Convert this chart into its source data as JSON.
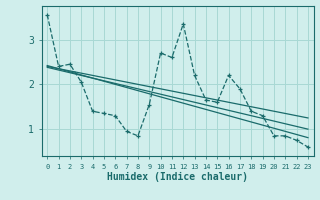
{
  "bg_color": "#d0eeec",
  "line_color": "#1a6b6b",
  "grid_color": "#a8d8d4",
  "xlabel": "Humidex (Indice chaleur)",
  "yticks": [
    1,
    2,
    3
  ],
  "xlim": [
    -0.5,
    23.5
  ],
  "ylim": [
    0.4,
    3.75
  ],
  "x": [
    0,
    1,
    2,
    3,
    4,
    5,
    6,
    7,
    8,
    9,
    10,
    11,
    12,
    13,
    14,
    15,
    16,
    17,
    18,
    19,
    20,
    21,
    22,
    23
  ],
  "y_main": [
    3.55,
    2.4,
    2.45,
    2.05,
    1.4,
    1.35,
    1.3,
    0.95,
    0.85,
    1.55,
    2.7,
    2.6,
    3.35,
    2.2,
    1.65,
    1.6,
    2.2,
    1.9,
    1.4,
    1.3,
    0.85,
    0.85,
    0.75,
    0.6
  ],
  "y_trend1": [
    2.4,
    2.35,
    2.3,
    2.25,
    2.2,
    2.15,
    2.1,
    2.05,
    2.0,
    1.95,
    1.9,
    1.85,
    1.8,
    1.75,
    1.7,
    1.65,
    1.6,
    1.55,
    1.5,
    1.45,
    1.4,
    1.35,
    1.3,
    1.25
  ],
  "y_trend2": [
    2.38,
    2.32,
    2.26,
    2.2,
    2.14,
    2.08,
    2.02,
    1.96,
    1.9,
    1.84,
    1.78,
    1.72,
    1.66,
    1.6,
    1.54,
    1.48,
    1.42,
    1.36,
    1.3,
    1.24,
    1.18,
    1.12,
    1.06,
    1.0
  ],
  "y_trend3": [
    2.42,
    2.35,
    2.28,
    2.21,
    2.14,
    2.07,
    2.0,
    1.93,
    1.86,
    1.79,
    1.72,
    1.65,
    1.58,
    1.51,
    1.44,
    1.37,
    1.3,
    1.23,
    1.16,
    1.09,
    1.02,
    0.95,
    0.88,
    0.81
  ],
  "xtick_labels": [
    "0",
    "1",
    "2",
    "3",
    "4",
    "5",
    "6",
    "7",
    "8",
    "9",
    "10",
    "11",
    "12",
    "13",
    "14",
    "15",
    "16",
    "17",
    "18",
    "19",
    "20",
    "21",
    "22",
    "23"
  ]
}
